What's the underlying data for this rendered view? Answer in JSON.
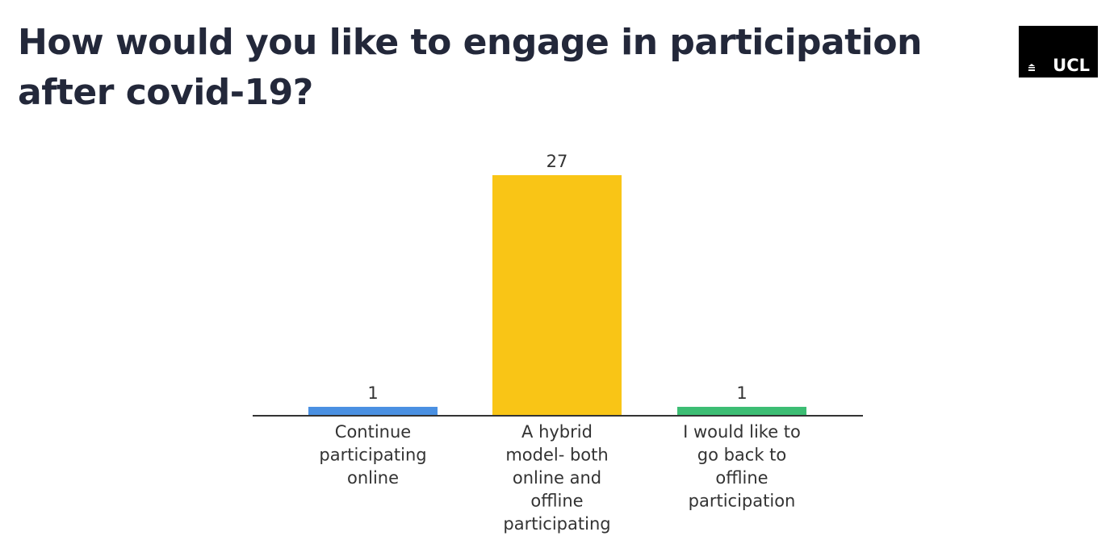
{
  "slide": {
    "title": "How would you like to engage in participation after covid-19?"
  },
  "logo": {
    "text": "UCL"
  },
  "colors": {
    "title": "#23283a",
    "axis": "#333333",
    "bars": [
      "#4a90e2",
      "#f9c516",
      "#3cbd73"
    ]
  },
  "chart_data": {
    "type": "bar",
    "title": "",
    "xlabel": "",
    "ylabel": "",
    "categories": [
      "Continue participating online",
      "A hybrid model- both online and offline participating",
      "I would like to go back to offline participation"
    ],
    "category_lines": [
      [
        "Continue",
        "participating",
        "online"
      ],
      [
        "A hybrid",
        "model- both",
        "online and",
        "offline",
        "participating"
      ],
      [
        "I would like to",
        "go back to",
        "offline",
        "participation"
      ]
    ],
    "values": [
      1,
      27,
      1
    ],
    "ylim": [
      0,
      27
    ],
    "grid": false,
    "legend": "none",
    "data_labels": true
  }
}
